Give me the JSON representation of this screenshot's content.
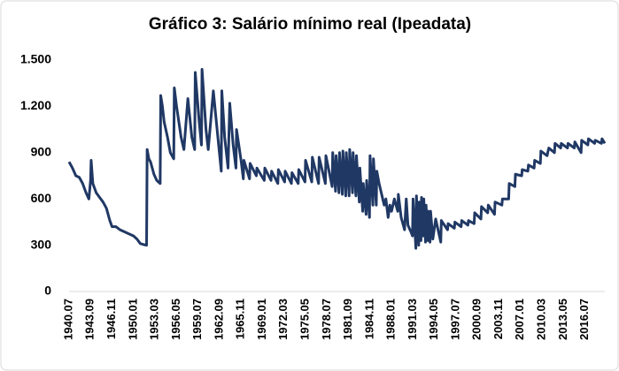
{
  "chart_data": {
    "type": "line",
    "title": "Gráfico 3: Salário mínimo real (Ipeadata)",
    "ylim": [
      0,
      1500
    ],
    "yticks": [
      0,
      300,
      600,
      900,
      {
        "value": 1200,
        "label": "1.200"
      },
      {
        "value": 1500,
        "label": "1.500"
      }
    ],
    "xlim": [
      "1940.07",
      "2019.06"
    ],
    "xticks": [
      "1940.07",
      "1943.09",
      "1946.11",
      "1950.01",
      "1953.03",
      "1956.05",
      "1959.07",
      "1962.09",
      "1965.11",
      "1969.01",
      "1972.03",
      "1975.05",
      "1978.07",
      "1981.09",
      "1984.11",
      "1988.01",
      "1991.03",
      "1994.05",
      "1997.07",
      "2000.09",
      "2003.11",
      "2007.01",
      "2010.03",
      "2013.05",
      "2016.07"
    ],
    "grid": false,
    "x": [
      "1940.07",
      "1941.01",
      "1941.07",
      "1942.01",
      "1942.07",
      "1943.01",
      "1943.06",
      "1943.09",
      "1943.10",
      "1944.01",
      "1944.07",
      "1945.01",
      "1945.07",
      "1946.01",
      "1946.07",
      "1946.11",
      "1947.06",
      "1948.01",
      "1948.07",
      "1949.01",
      "1949.07",
      "1950.01",
      "1950.07",
      "1951.01",
      "1951.06",
      "1951.12",
      "1952.01",
      "1952.04",
      "1952.07",
      "1953.01",
      "1953.06",
      "1953.12",
      "1954.01",
      "1954.04",
      "1954.07",
      "1955.01",
      "1955.06",
      "1955.12",
      "1956.01",
      "1956.05",
      "1956.09",
      "1957.01",
      "1957.06",
      "1958.01",
      "1958.08",
      "1959.01",
      "1959.02",
      "1959.09",
      "1960.01",
      "1960.02",
      "1960.09",
      "1961.01",
      "1961.10",
      "1962.06",
      "1962.12",
      "1963.01",
      "1963.06",
      "1963.12",
      "1964.03",
      "1964.09",
      "1965.02",
      "1965.03",
      "1965.11",
      "1966.03",
      "1966.04",
      "1967.02",
      "1967.03",
      "1968.02",
      "1968.03",
      "1969.04",
      "1969.05",
      "1970.04",
      "1970.05",
      "1971.04",
      "1971.05",
      "1972.04",
      "1972.05",
      "1973.04",
      "1973.05",
      "1974.04",
      "1974.05",
      "1975.04",
      "1975.05",
      "1976.04",
      "1976.05",
      "1977.04",
      "1977.05",
      "1978.04",
      "1978.05",
      "1979.04",
      "1979.05",
      "1979.10",
      "1979.11",
      "1980.04",
      "1980.05",
      "1980.10",
      "1980.11",
      "1981.04",
      "1981.05",
      "1981.10",
      "1981.11",
      "1982.04",
      "1982.05",
      "1982.10",
      "1982.11",
      "1983.04",
      "1983.05",
      "1983.10",
      "1983.11",
      "1984.04",
      "1984.05",
      "1984.10",
      "1984.11",
      "1985.04",
      "1985.05",
      "1985.10",
      "1985.11",
      "1986.03",
      "1986.12",
      "1987.03",
      "1987.07",
      "1987.10",
      "1988.01",
      "1988.06",
      "1988.12",
      "1989.01",
      "1989.06",
      "1989.12",
      "1990.03",
      "1990.06",
      "1990.12",
      "1991.02",
      "1991.03",
      "1991.08",
      "1991.09",
      "1992.01",
      "1992.02",
      "1992.05",
      "1992.06",
      "1992.09",
      "1992.10",
      "1993.01",
      "1993.02",
      "1993.05",
      "1993.06",
      "1993.09",
      "1993.10",
      "1994.02",
      "1994.07",
      "1995.04",
      "1995.05",
      "1996.04",
      "1996.05",
      "1997.04",
      "1997.05",
      "1998.04",
      "1998.05",
      "1999.04",
      "1999.05",
      "2000.03",
      "2000.04",
      "2001.03",
      "2001.04",
      "2002.03",
      "2002.04",
      "2003.03",
      "2003.04",
      "2004.04",
      "2004.05",
      "2005.04",
      "2005.05",
      "2006.03",
      "2006.04",
      "2007.03",
      "2007.04",
      "2008.02",
      "2008.03",
      "2009.01",
      "2009.02",
      "2009.12",
      "2010.01",
      "2010.12",
      "2011.01",
      "2011.03",
      "2012.01",
      "2012.02",
      "2012.12",
      "2013.01",
      "2013.12",
      "2014.01",
      "2014.12",
      "2015.01",
      "2015.12",
      "2016.01",
      "2016.12",
      "2017.01",
      "2017.12",
      "2018.01",
      "2018.12",
      "2019.01",
      "2019.06"
    ],
    "series": [
      {
        "color": "#203864",
        "values": [
          840,
          800,
          750,
          740,
          700,
          640,
          600,
          720,
          850,
          700,
          640,
          610,
          580,
          540,
          460,
          420,
          420,
          400,
          390,
          380,
          370,
          360,
          340,
          310,
          305,
          300,
          920,
          860,
          840,
          760,
          720,
          700,
          1270,
          1200,
          1100,
          1000,
          900,
          860,
          1320,
          1200,
          1100,
          1000,
          920,
          1250,
          1000,
          920,
          1420,
          1100,
          950,
          1440,
          1050,
          920,
          1300,
          1000,
          780,
          1300,
          1000,
          800,
          1220,
          950,
          800,
          1050,
          850,
          730,
          850,
          730,
          830,
          750,
          800,
          720,
          800,
          720,
          780,
          700,
          790,
          710,
          780,
          700,
          770,
          700,
          790,
          710,
          850,
          710,
          870,
          700,
          870,
          700,
          880,
          680,
          900,
          650,
          880,
          640,
          900,
          630,
          910,
          620,
          900,
          620,
          920,
          640,
          900,
          620,
          880,
          580,
          800,
          520,
          700,
          500,
          720,
          480,
          880,
          560,
          860,
          560,
          780,
          700,
          560,
          600,
          480,
          560,
          520,
          600,
          520,
          630,
          480,
          400,
          600,
          430,
          380,
          360,
          600,
          280,
          620,
          300,
          580,
          330,
          610,
          360,
          600,
          320,
          560,
          330,
          520,
          320,
          520,
          340,
          470,
          320,
          460,
          400,
          440,
          410,
          450,
          420,
          460,
          430,
          460,
          440,
          510,
          470,
          550,
          510,
          560,
          500,
          580,
          560,
          600,
          600,
          700,
          680,
          760,
          750,
          790,
          780,
          820,
          800,
          850,
          830,
          910,
          880,
          900,
          930,
          900,
          960,
          930,
          960,
          930,
          960,
          930,
          970,
          900,
          980,
          950,
          990,
          960,
          980,
          960,
          990,
          960
        ]
      }
    ]
  }
}
